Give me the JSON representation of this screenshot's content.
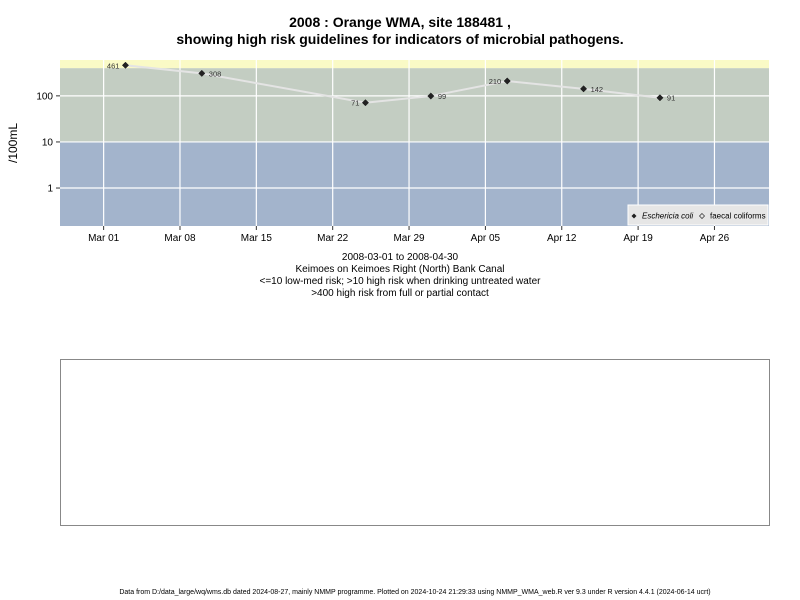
{
  "chart_data": {
    "type": "scatter",
    "title": "2008 : Orange WMA, site 188481 ,",
    "subtitle": "showing high risk guidelines for indicators of microbial pathogens.",
    "ylabel": "/100mL",
    "yscale": "log",
    "ylim": [
      0.15,
      600
    ],
    "xlim": [
      "2008-02-26",
      "2008-05-01"
    ],
    "x_ticks": [
      {
        "date": "2008-03-01",
        "label": "Mar 01"
      },
      {
        "date": "2008-03-08",
        "label": "Mar 08"
      },
      {
        "date": "2008-03-15",
        "label": "Mar 15"
      },
      {
        "date": "2008-03-22",
        "label": "Mar 22"
      },
      {
        "date": "2008-03-29",
        "label": "Mar 29"
      },
      {
        "date": "2008-04-05",
        "label": "Apr 05"
      },
      {
        "date": "2008-04-12",
        "label": "Apr 12"
      },
      {
        "date": "2008-04-19",
        "label": "Apr 19"
      },
      {
        "date": "2008-04-26",
        "label": "Apr 26"
      }
    ],
    "y_ticks": [
      {
        "value": 1,
        "label": "1"
      },
      {
        "value": 10,
        "label": "10"
      },
      {
        "value": 100,
        "label": "100"
      }
    ],
    "risk_bands": [
      {
        "from": 0.15,
        "to": 10,
        "color": "#a3b4cc"
      },
      {
        "from": 10,
        "to": 400,
        "color": "#c3cdc2"
      },
      {
        "from": 400,
        "to": 600,
        "color": "#fafac6"
      }
    ],
    "grid": true,
    "series": [
      {
        "name": "Eschericia coli",
        "marker": "filled-diamond",
        "color": "#222222",
        "line_color": "#e4e4e4",
        "points": [
          {
            "date": "2008-03-03",
            "value": 461,
            "label": "461"
          },
          {
            "date": "2008-03-10",
            "value": 308,
            "label": "308"
          },
          {
            "date": "2008-03-25",
            "value": 71,
            "label": "71"
          },
          {
            "date": "2008-03-31",
            "value": 99,
            "label": "99"
          },
          {
            "date": "2008-04-07",
            "value": 210,
            "label": "210"
          },
          {
            "date": "2008-04-14",
            "value": 142,
            "label": "142"
          },
          {
            "date": "2008-04-21",
            "value": 91,
            "label": "91"
          }
        ]
      },
      {
        "name": "faecal coliforms",
        "marker": "open-diamond",
        "color": "#444444",
        "points": []
      }
    ],
    "legend": {
      "placement": "bottom-right"
    }
  },
  "caption": {
    "date_range": "2008-03-01 to 2008-04-30",
    "location": "Keimoes on Keimoes Right (North) Bank Canal",
    "risk_note_1": "<=10 low-med risk; >10 high risk when drinking untreated water",
    "risk_note_2": ">400 high risk from full or partial contact"
  },
  "footer": "Data from D:/data_large/wq/wms.db dated 2024-08-27, mainly NMMP programme. Plotted on 2024-10-24 21:29:33 using NMMP_WMA_web.R ver 9.3 under R version 4.4.1 (2024-06-14 ucrt)"
}
